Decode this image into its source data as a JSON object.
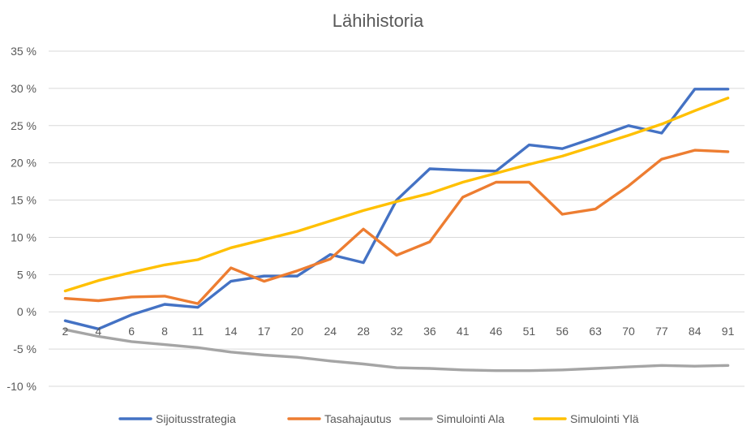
{
  "chart_data": {
    "type": "line",
    "title": "Lähihistoria",
    "xlabel": "",
    "ylabel": "",
    "categories": [
      "2",
      "4",
      "6",
      "8",
      "11",
      "14",
      "17",
      "20",
      "24",
      "28",
      "32",
      "36",
      "41",
      "46",
      "51",
      "56",
      "63",
      "70",
      "77",
      "84",
      "91"
    ],
    "y_ticks": [
      {
        "value": 35,
        "label": "35 %"
      },
      {
        "value": 30,
        "label": "30 %"
      },
      {
        "value": 25,
        "label": "25 %"
      },
      {
        "value": 20,
        "label": "20 %"
      },
      {
        "value": 15,
        "label": "15 %"
      },
      {
        "value": 10,
        "label": "10 %"
      },
      {
        "value": 5,
        "label": "5 %"
      },
      {
        "value": 0,
        "label": "0 %"
      },
      {
        "value": -5,
        "label": "-5 %"
      },
      {
        "value": -10,
        "label": "-10 %"
      }
    ],
    "ylim": [
      -10,
      35
    ],
    "grid": true,
    "legend_position": "bottom",
    "series": [
      {
        "name": "Sijoitusstrategia",
        "color": "#4472c4",
        "values": [
          -1.2,
          -2.3,
          -0.4,
          1.0,
          0.6,
          4.1,
          4.8,
          4.8,
          7.7,
          6.6,
          15.0,
          19.2,
          19.0,
          18.9,
          22.4,
          21.9,
          23.4,
          25.0,
          24.0,
          29.9,
          29.9
        ]
      },
      {
        "name": "Tasahajautus",
        "color": "#ed7d31",
        "values": [
          1.8,
          1.5,
          2.0,
          2.1,
          1.1,
          5.9,
          4.1,
          5.5,
          7.1,
          11.1,
          7.6,
          9.4,
          15.4,
          17.4,
          17.4,
          13.1,
          13.8,
          16.9,
          20.5,
          21.7,
          21.5
        ]
      },
      {
        "name": "Simulointi Ala",
        "color": "#a5a5a5",
        "values": [
          -2.4,
          -3.3,
          -4.0,
          -4.4,
          -4.8,
          -5.4,
          -5.8,
          -6.1,
          -6.6,
          -7.0,
          -7.5,
          -7.6,
          -7.8,
          -7.9,
          -7.9,
          -7.8,
          -7.6,
          -7.4,
          -7.2,
          -7.3,
          -7.2
        ]
      },
      {
        "name": "Simulointi Ylä",
        "color": "#ffc000",
        "values": [
          2.8,
          4.2,
          5.3,
          6.3,
          7.0,
          8.6,
          9.7,
          10.8,
          12.2,
          13.6,
          14.8,
          15.9,
          17.4,
          18.6,
          19.8,
          20.9,
          22.3,
          23.7,
          25.2,
          27.0,
          28.7
        ]
      }
    ]
  }
}
